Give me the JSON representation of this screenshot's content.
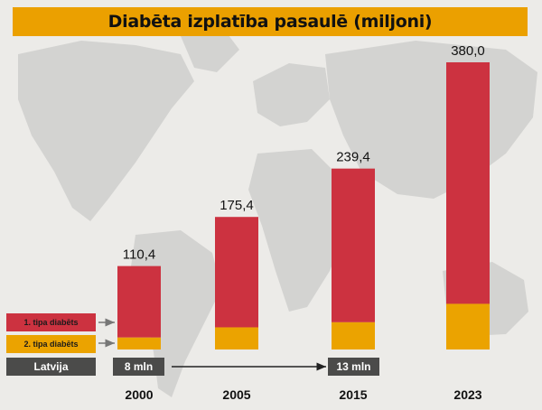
{
  "chart_data": {
    "type": "bar",
    "stacked": true,
    "title": "Diabēta izplatība pasaulē (miljoni)",
    "categories": [
      "2000",
      "2005",
      "2015",
      "2023"
    ],
    "totals": [
      110.4,
      175.4,
      239.4,
      380.0
    ],
    "total_labels": [
      "110,4",
      "175,4",
      "239,4",
      "380,0"
    ],
    "series": [
      {
        "name": "1. tipa diabēts",
        "color": "#cc3240",
        "values": [
          94.6,
          146.1,
          203.4,
          319.6
        ]
      },
      {
        "name": "2. tipa diabēts",
        "color": "#eba300",
        "values": [
          15.8,
          29.3,
          36.0,
          60.4
        ]
      }
    ],
    "ylim": [
      0,
      380
    ],
    "grid": false,
    "legend_placement": "bottom-left",
    "latvia": {
      "label": "Latvija",
      "values": [
        {
          "year": "2000",
          "text": "8 mln"
        },
        {
          "year": "2015",
          "text": "13 mln"
        }
      ]
    }
  },
  "colors": {
    "title_bg": "#eba000",
    "type1": "#cc3240",
    "type2": "#eba300",
    "latvia_bg": "#4b4b4a",
    "background": "#ecebe8",
    "map": "#c9c9c9"
  }
}
